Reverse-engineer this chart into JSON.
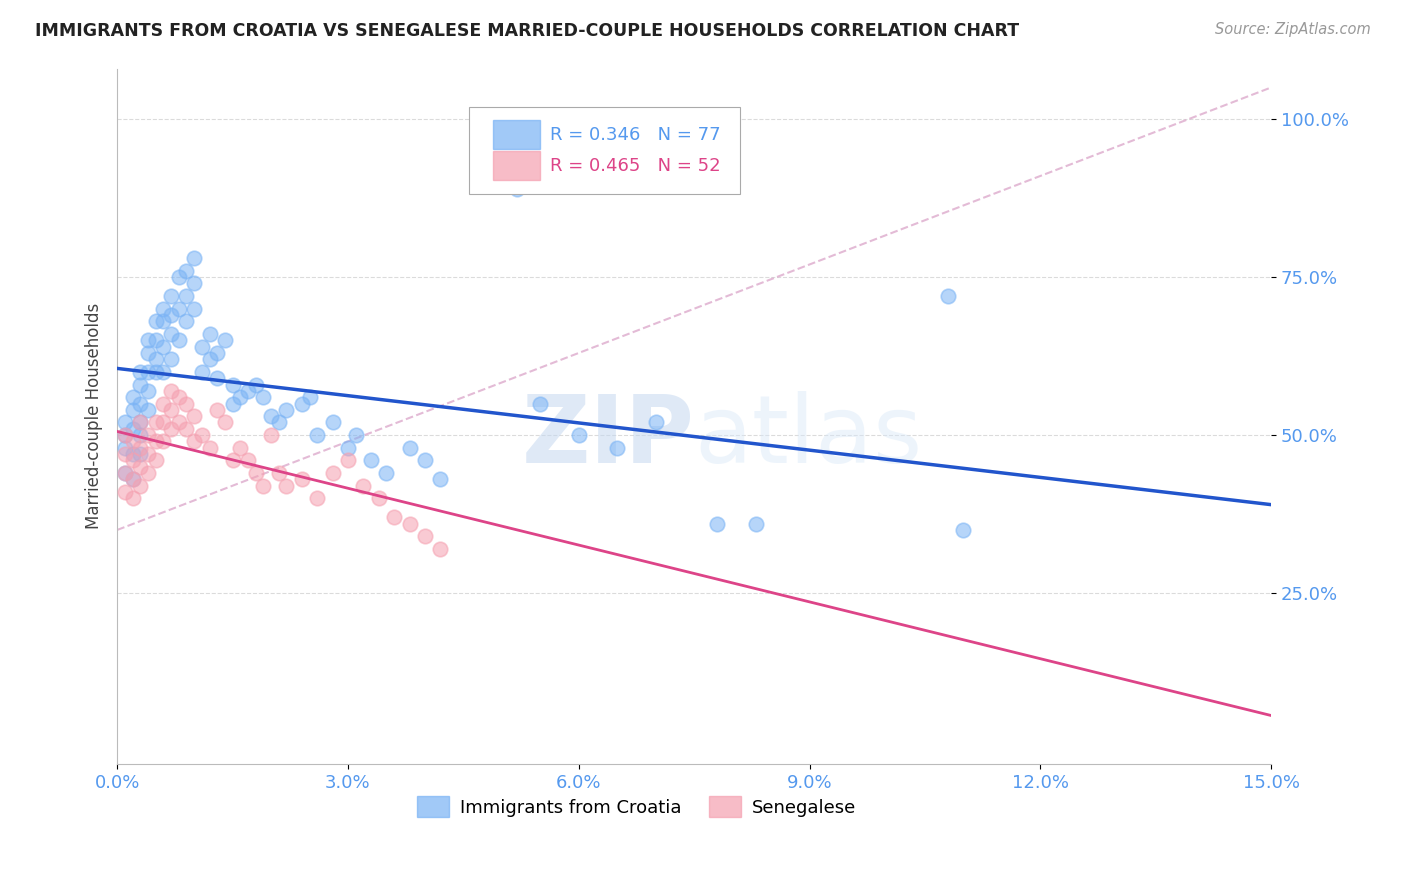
{
  "title": "IMMIGRANTS FROM CROATIA VS SENEGALESE MARRIED-COUPLE HOUSEHOLDS CORRELATION CHART",
  "source": "Source: ZipAtlas.com",
  "ylabel": "Married-couple Households",
  "xlim": [
    0.0,
    0.15
  ],
  "ylim": [
    0.0,
    1.05
  ],
  "yticks": [
    0.25,
    0.5,
    0.75,
    1.0
  ],
  "ytick_labels": [
    "25.0%",
    "50.0%",
    "75.0%",
    "100.0%"
  ],
  "xticks": [
    0.0,
    0.03,
    0.06,
    0.09,
    0.12,
    0.15
  ],
  "xtick_labels": [
    "0.0%",
    "3.0%",
    "6.0%",
    "9.0%",
    "12.0%",
    "15.0%"
  ],
  "croatia_R": 0.346,
  "croatia_N": 77,
  "senegal_R": 0.465,
  "senegal_N": 52,
  "blue_color": "#7ab3f5",
  "pink_color": "#f5a0b0",
  "blue_line_color": "#2255cc",
  "pink_line_color": "#dd4488",
  "ref_line_color": "#ddaacc",
  "axis_tick_color": "#5599ee",
  "background_color": "#ffffff",
  "grid_color": "#cccccc",
  "croatia_x": [
    0.001,
    0.001,
    0.001,
    0.001,
    0.002,
    0.002,
    0.002,
    0.002,
    0.002,
    0.003,
    0.003,
    0.003,
    0.003,
    0.003,
    0.003,
    0.004,
    0.004,
    0.004,
    0.004,
    0.004,
    0.005,
    0.005,
    0.005,
    0.005,
    0.006,
    0.006,
    0.006,
    0.006,
    0.007,
    0.007,
    0.007,
    0.007,
    0.008,
    0.008,
    0.008,
    0.009,
    0.009,
    0.009,
    0.01,
    0.01,
    0.01,
    0.011,
    0.011,
    0.012,
    0.012,
    0.013,
    0.013,
    0.014,
    0.015,
    0.015,
    0.016,
    0.017,
    0.018,
    0.019,
    0.02,
    0.021,
    0.022,
    0.024,
    0.025,
    0.026,
    0.028,
    0.03,
    0.031,
    0.033,
    0.035,
    0.038,
    0.04,
    0.042,
    0.052,
    0.055,
    0.06,
    0.065,
    0.07,
    0.078,
    0.083,
    0.108,
    0.11
  ],
  "croatia_y": [
    0.52,
    0.5,
    0.48,
    0.44,
    0.56,
    0.54,
    0.51,
    0.47,
    0.43,
    0.6,
    0.58,
    0.55,
    0.52,
    0.5,
    0.47,
    0.65,
    0.63,
    0.6,
    0.57,
    0.54,
    0.68,
    0.65,
    0.62,
    0.6,
    0.7,
    0.68,
    0.64,
    0.6,
    0.72,
    0.69,
    0.66,
    0.62,
    0.75,
    0.7,
    0.65,
    0.76,
    0.72,
    0.68,
    0.78,
    0.74,
    0.7,
    0.64,
    0.6,
    0.66,
    0.62,
    0.63,
    0.59,
    0.65,
    0.58,
    0.55,
    0.56,
    0.57,
    0.58,
    0.56,
    0.53,
    0.52,
    0.54,
    0.55,
    0.56,
    0.5,
    0.52,
    0.48,
    0.5,
    0.46,
    0.44,
    0.48,
    0.46,
    0.43,
    0.89,
    0.55,
    0.5,
    0.48,
    0.52,
    0.36,
    0.36,
    0.72,
    0.35
  ],
  "senegal_x": [
    0.001,
    0.001,
    0.001,
    0.001,
    0.002,
    0.002,
    0.002,
    0.002,
    0.003,
    0.003,
    0.003,
    0.003,
    0.004,
    0.004,
    0.004,
    0.005,
    0.005,
    0.005,
    0.006,
    0.006,
    0.006,
    0.007,
    0.007,
    0.007,
    0.008,
    0.008,
    0.009,
    0.009,
    0.01,
    0.01,
    0.011,
    0.012,
    0.013,
    0.014,
    0.015,
    0.016,
    0.017,
    0.018,
    0.019,
    0.02,
    0.021,
    0.022,
    0.024,
    0.026,
    0.028,
    0.03,
    0.032,
    0.034,
    0.036,
    0.038,
    0.04,
    0.042
  ],
  "senegal_y": [
    0.5,
    0.47,
    0.44,
    0.41,
    0.49,
    0.46,
    0.43,
    0.4,
    0.52,
    0.48,
    0.45,
    0.42,
    0.5,
    0.47,
    0.44,
    0.52,
    0.49,
    0.46,
    0.55,
    0.52,
    0.49,
    0.57,
    0.54,
    0.51,
    0.56,
    0.52,
    0.55,
    0.51,
    0.53,
    0.49,
    0.5,
    0.48,
    0.54,
    0.52,
    0.46,
    0.48,
    0.46,
    0.44,
    0.42,
    0.5,
    0.44,
    0.42,
    0.43,
    0.4,
    0.44,
    0.46,
    0.42,
    0.4,
    0.37,
    0.36,
    0.34,
    0.32
  ]
}
